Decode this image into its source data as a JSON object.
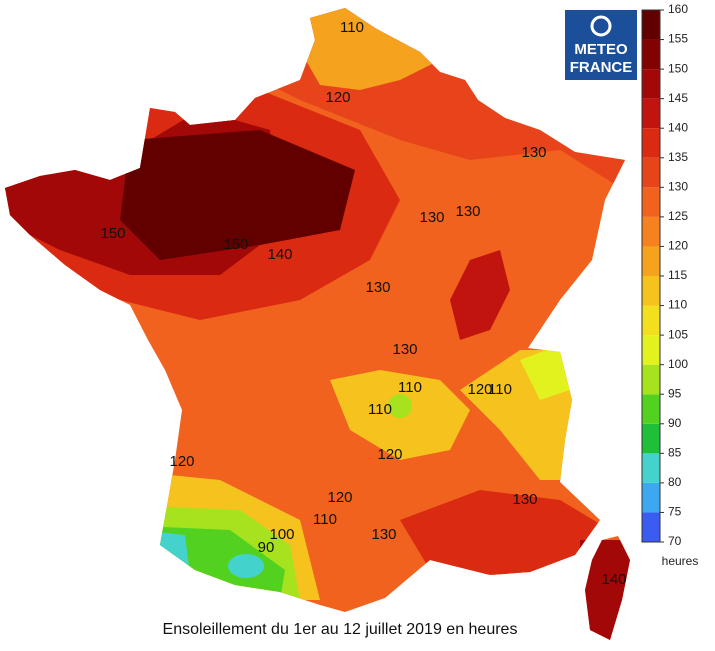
{
  "caption": "Ensoleillement du 1er au 12 juillet 2019 en heures",
  "logo": {
    "line1": "METEO",
    "line2": "FRANCE"
  },
  "legend": {
    "unit": "heures",
    "ticks": [
      70,
      75,
      80,
      85,
      90,
      95,
      100,
      105,
      110,
      115,
      120,
      125,
      130,
      135,
      140,
      145,
      150,
      155,
      160
    ],
    "colors": [
      "#3a5cf2",
      "#3ca8f2",
      "#44d2cc",
      "#1fbf3a",
      "#52d21e",
      "#a6e31e",
      "#e2f21e",
      "#f2e01e",
      "#f5c21e",
      "#f5a21e",
      "#f5821e",
      "#f0621e",
      "#e8441c",
      "#da2a12",
      "#c2140e",
      "#a20808",
      "#820202",
      "#620000"
    ]
  },
  "contour_labels": [
    110,
    120,
    130,
    130,
    130,
    150,
    150,
    140,
    130,
    130,
    110,
    110,
    120,
    110,
    120,
    120,
    110,
    100,
    90,
    130,
    130,
    140,
    120
  ]
}
